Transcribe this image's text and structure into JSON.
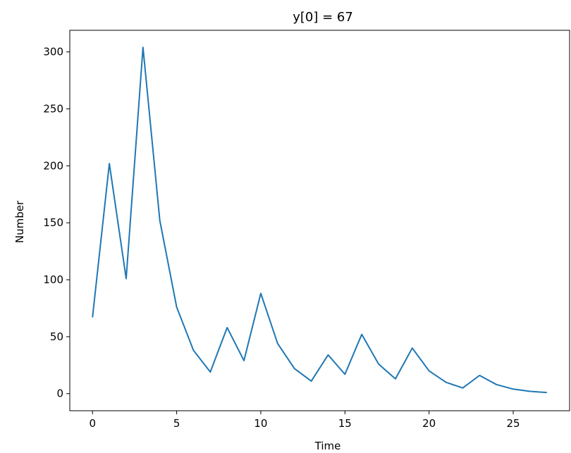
{
  "chart_data": {
    "type": "line",
    "title": "y[0] = 67",
    "xlabel": "Time",
    "ylabel": "Number",
    "xlim": [
      -1.35,
      28.35
    ],
    "ylim": [
      -15,
      319
    ],
    "xticks": [
      "0",
      "5",
      "10",
      "15",
      "20",
      "25"
    ],
    "yticks": [
      "0",
      "50",
      "100",
      "150",
      "200",
      "250",
      "300"
    ],
    "grid": false,
    "line_color": "#1f77b4",
    "series": [
      {
        "x": [
          0,
          1,
          2,
          3,
          4,
          5,
          6,
          7,
          8,
          9,
          10,
          11,
          12,
          13,
          14,
          15,
          16,
          17,
          18,
          19,
          20,
          21,
          22,
          23,
          24,
          25,
          26,
          27
        ],
        "values": [
          67,
          202,
          101,
          304,
          152,
          76,
          38,
          19,
          58,
          29,
          88,
          44,
          22,
          11,
          34,
          17,
          52,
          26,
          13,
          40,
          20,
          10,
          5,
          16,
          8,
          4,
          2,
          1
        ]
      }
    ]
  }
}
